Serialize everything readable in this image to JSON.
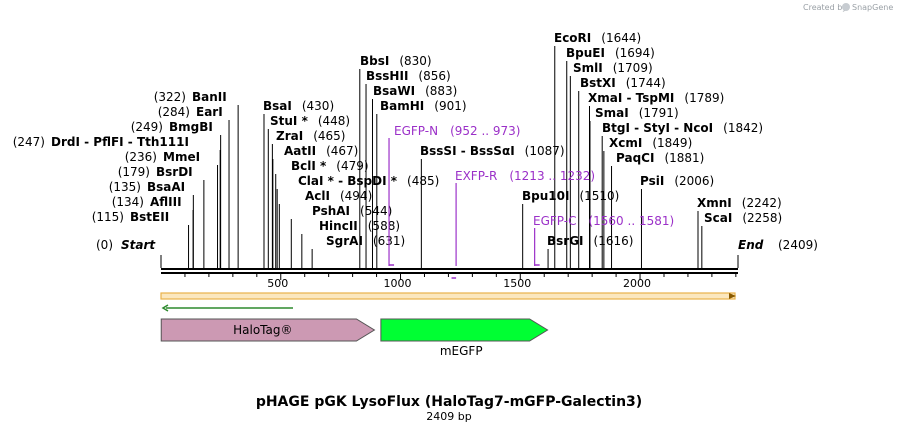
{
  "credit": {
    "text": "Created by",
    "brand": "SnapGene"
  },
  "title": "pHAGE pGK LysoFlux (HaloTag7-mGFP-Galectin3)",
  "length_label": "2409 bp",
  "total_bp": 2409,
  "ends": {
    "start_label": "Start",
    "start_pos": "(0)",
    "end_label": "End",
    "end_pos": "(2409)"
  },
  "ticks": [
    {
      "bp": 500,
      "label": "500"
    },
    {
      "bp": 1000,
      "label": "1000"
    },
    {
      "bp": 1500,
      "label": "1500"
    },
    {
      "bp": 2000,
      "label": "2000"
    }
  ],
  "sites_left": [
    {
      "name": "BanII",
      "pos": "(322)",
      "bp": 322
    },
    {
      "name": "EarI",
      "pos": "(284)",
      "bp": 284
    },
    {
      "name": "BmgBI",
      "pos": "(249)",
      "bp": 249
    },
    {
      "name": "DrdI - PflFI - Tth111I",
      "pos": "(247)",
      "bp": 247
    },
    {
      "name": "MmeI",
      "pos": "(236)",
      "bp": 236
    },
    {
      "name": "BsrDI",
      "pos": "(179)",
      "bp": 179
    },
    {
      "name": "BsaAI",
      "pos": "(135)",
      "bp": 135
    },
    {
      "name": "AflIII",
      "pos": "(134)",
      "bp": 134
    },
    {
      "name": "BstEII",
      "pos": "(115)",
      "bp": 115
    }
  ],
  "sites_right": [
    {
      "name": "BsaI",
      "pos": "(430)",
      "bp": 430
    },
    {
      "name": "StuI *",
      "pos": "(448)",
      "bp": 448
    },
    {
      "name": "ZraI",
      "pos": "(465)",
      "bp": 465
    },
    {
      "name": "AatII",
      "pos": "(467)",
      "bp": 467
    },
    {
      "name": "BclI *",
      "pos": "(479)",
      "bp": 479
    },
    {
      "name": "ClaI * - BspDI *",
      "pos": "(485)",
      "bp": 485
    },
    {
      "name": "AclI",
      "pos": "(494)",
      "bp": 494
    },
    {
      "name": "PshAI",
      "pos": "(544)",
      "bp": 544
    },
    {
      "name": "HincII",
      "pos": "(588)",
      "bp": 588
    },
    {
      "name": "SgrAI",
      "pos": "(631)",
      "bp": 631
    },
    {
      "name": "BbsI",
      "pos": "(830)",
      "bp": 830
    },
    {
      "name": "BssHII",
      "pos": "(856)",
      "bp": 856
    },
    {
      "name": "BsaWI",
      "pos": "(883)",
      "bp": 883
    },
    {
      "name": "BamHI",
      "pos": "(901)",
      "bp": 901
    },
    {
      "name": "BssSI - BssSαI",
      "pos": "(1087)",
      "bp": 1087
    },
    {
      "name": "Bpu10I",
      "pos": "(1510)",
      "bp": 1510
    },
    {
      "name": "BsrGI",
      "pos": "(1616)",
      "bp": 1616
    },
    {
      "name": "EcoRI",
      "pos": "(1644)",
      "bp": 1644
    },
    {
      "name": "BpuEI",
      "pos": "(1694)",
      "bp": 1694
    },
    {
      "name": "SmlI",
      "pos": "(1709)",
      "bp": 1709
    },
    {
      "name": "BstXI",
      "pos": "(1744)",
      "bp": 1744
    },
    {
      "name": "XmaI - TspMI",
      "pos": "(1789)",
      "bp": 1789
    },
    {
      "name": "SmaI",
      "pos": "(1791)",
      "bp": 1791
    },
    {
      "name": "BtgI - StyI - NcoI",
      "pos": "(1842)",
      "bp": 1842
    },
    {
      "name": "XcmI",
      "pos": "(1849)",
      "bp": 1849
    },
    {
      "name": "PaqCI",
      "pos": "(1881)",
      "bp": 1881
    },
    {
      "name": "PsiI",
      "pos": "(2006)",
      "bp": 2006
    },
    {
      "name": "XmnI",
      "pos": "(2242)",
      "bp": 2242
    },
    {
      "name": "ScaI",
      "pos": "(2258)",
      "bp": 2258
    }
  ],
  "primers": [
    {
      "name": "EGFP-N",
      "range": "(952 .. 973)",
      "start": 952,
      "end": 973
    },
    {
      "name": "EXFP-R",
      "range": "(1213 .. 1232)",
      "start": 1213,
      "end": 1232
    },
    {
      "name": "EGFP-C",
      "range": "(1560 .. 1581)",
      "start": 1560,
      "end": 1581
    }
  ],
  "features": [
    {
      "name": "HaloTag®",
      "start": 1,
      "end": 891,
      "color": "#cc99b3"
    },
    {
      "name": "mEGFP",
      "start": 918,
      "end": 1614,
      "color": "#00ff33"
    }
  ],
  "colors": {
    "orf_outline": "#e8b24a",
    "orf_fill": "#fbe7be",
    "orf_arrow": "#8a5a00",
    "orf2": "#2d8a2d",
    "primer": "#9b30c8",
    "backbone": "#000000"
  }
}
